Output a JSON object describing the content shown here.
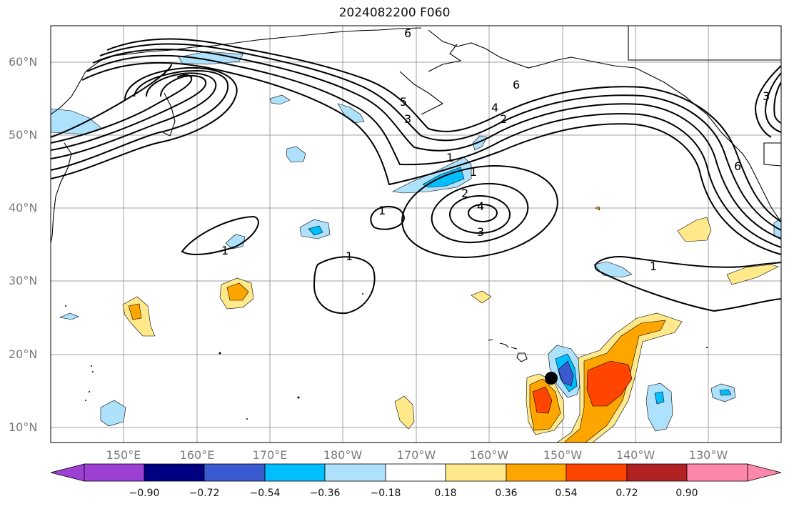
{
  "title": "2024082200 F060",
  "lat_labels": [
    "60°N",
    "50°N",
    "40°N",
    "30°N",
    "20°N",
    "10°N"
  ],
  "lon_labels": [
    "150°E",
    "160°E",
    "170°E",
    "180°W",
    "170°W",
    "160°W",
    "150°W",
    "140°W",
    "130°W"
  ],
  "contour_labels": [
    "6",
    "5",
    "3",
    "6",
    "4",
    "2",
    "1",
    "1",
    "2",
    "4",
    "3",
    "1",
    "1",
    "1",
    "1",
    "3",
    "6"
  ],
  "colorbar": {
    "ticks": [
      "−0.90",
      "−0.72",
      "−0.54",
      "−0.36",
      "−0.18",
      "0.18",
      "0.36",
      "0.54",
      "0.72",
      "0.90"
    ],
    "colors": [
      "#9c3fd4",
      "#000080",
      "#3a5bcf",
      "#00bfff",
      "#aee1fc",
      "#ffffff",
      "#ffe98a",
      "#ffa500",
      "#ff4500",
      "#b22222",
      "#ff88aa"
    ]
  },
  "colors": {
    "neg_light": "#aee1fc",
    "neg_mid": "#00bfff",
    "neg_dark": "#3a5bcf",
    "pos_light": "#ffe98a",
    "pos_mid": "#ffa500",
    "pos_dark": "#ff4500"
  },
  "marker": "black-circle"
}
